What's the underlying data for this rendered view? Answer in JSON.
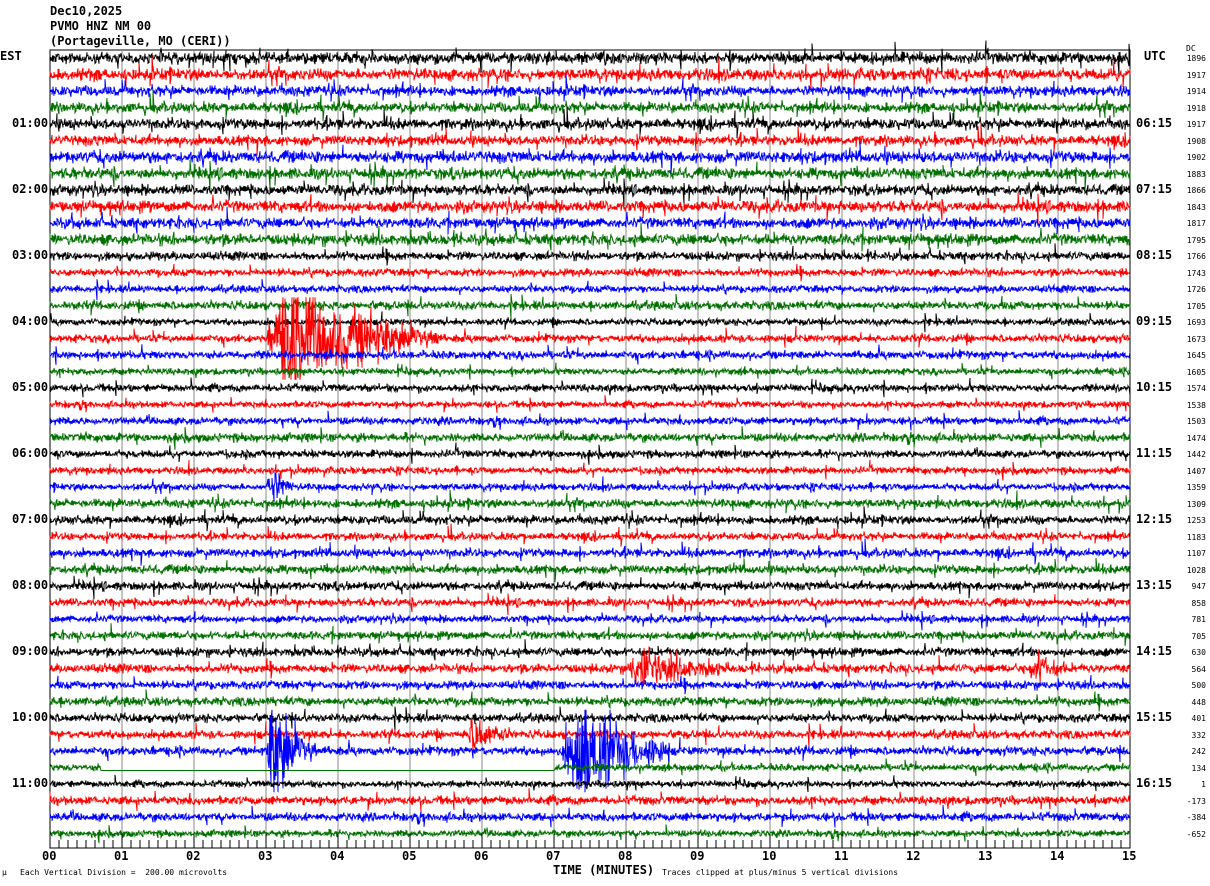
{
  "header": {
    "date": "Dec10,2025",
    "station": "PVMO HNZ NM 00",
    "location": "(Portageville, MO (CERI))"
  },
  "chart_data": {
    "type": "line",
    "subtype": "helicorder",
    "xlabel": "TIME (MINUTES)",
    "x_ticks": [
      "00",
      "01",
      "02",
      "03",
      "04",
      "05",
      "06",
      "07",
      "08",
      "09",
      "10",
      "11",
      "12",
      "13",
      "14",
      "15"
    ],
    "xlim": [
      0,
      15
    ],
    "grid": "vertical lines every minute",
    "left_axis_title": "EST",
    "right_axis_title": "UTC",
    "dc_title": "DC",
    "left_labels": [
      {
        "row": 4,
        "text": "01:00"
      },
      {
        "row": 8,
        "text": "02:00"
      },
      {
        "row": 12,
        "text": "03:00"
      },
      {
        "row": 16,
        "text": "04:00"
      },
      {
        "row": 20,
        "text": "05:00"
      },
      {
        "row": 24,
        "text": "06:00"
      },
      {
        "row": 28,
        "text": "07:00"
      },
      {
        "row": 32,
        "text": "08:00"
      },
      {
        "row": 36,
        "text": "09:00"
      },
      {
        "row": 40,
        "text": "10:00"
      },
      {
        "row": 44,
        "text": "11:00"
      }
    ],
    "right_labels": [
      {
        "row": 4,
        "text": "06:15"
      },
      {
        "row": 8,
        "text": "07:15"
      },
      {
        "row": 12,
        "text": "08:15"
      },
      {
        "row": 16,
        "text": "09:15"
      },
      {
        "row": 20,
        "text": "10:15"
      },
      {
        "row": 24,
        "text": "11:15"
      },
      {
        "row": 28,
        "text": "12:15"
      },
      {
        "row": 32,
        "text": "13:15"
      },
      {
        "row": 36,
        "text": "14:15"
      },
      {
        "row": 40,
        "text": "15:15"
      },
      {
        "row": 44,
        "text": "16:15"
      }
    ],
    "dc_offsets": [
      1896,
      1917,
      1914,
      1918,
      1917,
      1908,
      1902,
      1883,
      1866,
      1843,
      1817,
      1795,
      1766,
      1743,
      1726,
      1705,
      1693,
      1673,
      1645,
      1605,
      1574,
      1538,
      1503,
      1474,
      1442,
      1407,
      1359,
      1309,
      1253,
      1183,
      1107,
      1028,
      947,
      858,
      781,
      705,
      630,
      564,
      500,
      448,
      401,
      332,
      242,
      134,
      1,
      -173,
      -384,
      -652
    ],
    "trace_colors": [
      "#000000",
      "#ff0000",
      "#0000ff",
      "#007000"
    ],
    "rows_per_hour": 4,
    "minutes_per_row": 15,
    "events": [
      {
        "row": 17,
        "start": 3.0,
        "end": 5.4,
        "amplitude": 5
      },
      {
        "row": 26,
        "start": 3.0,
        "end": 3.4,
        "amplitude": 1.5
      },
      {
        "row": 37,
        "start": 8.0,
        "end": 9.3,
        "amplitude": 1.6
      },
      {
        "row": 37,
        "start": 13.6,
        "end": 14.1,
        "amplitude": 1.5
      },
      {
        "row": 41,
        "start": 5.8,
        "end": 6.4,
        "amplitude": 1.5
      },
      {
        "row": 42,
        "start": 3.0,
        "end": 3.7,
        "amplitude": 5
      },
      {
        "row": 42,
        "start": 7.1,
        "end": 8.6,
        "amplitude": 4.5
      }
    ],
    "gaps": [
      {
        "row": 43,
        "start": 0.7,
        "end": 7.0
      }
    ],
    "footer_scale": "Each Vertical Division =  200.00 microvolts",
    "footer_clip": "Traces clipped at plus/minus 5 vertical divisions"
  }
}
